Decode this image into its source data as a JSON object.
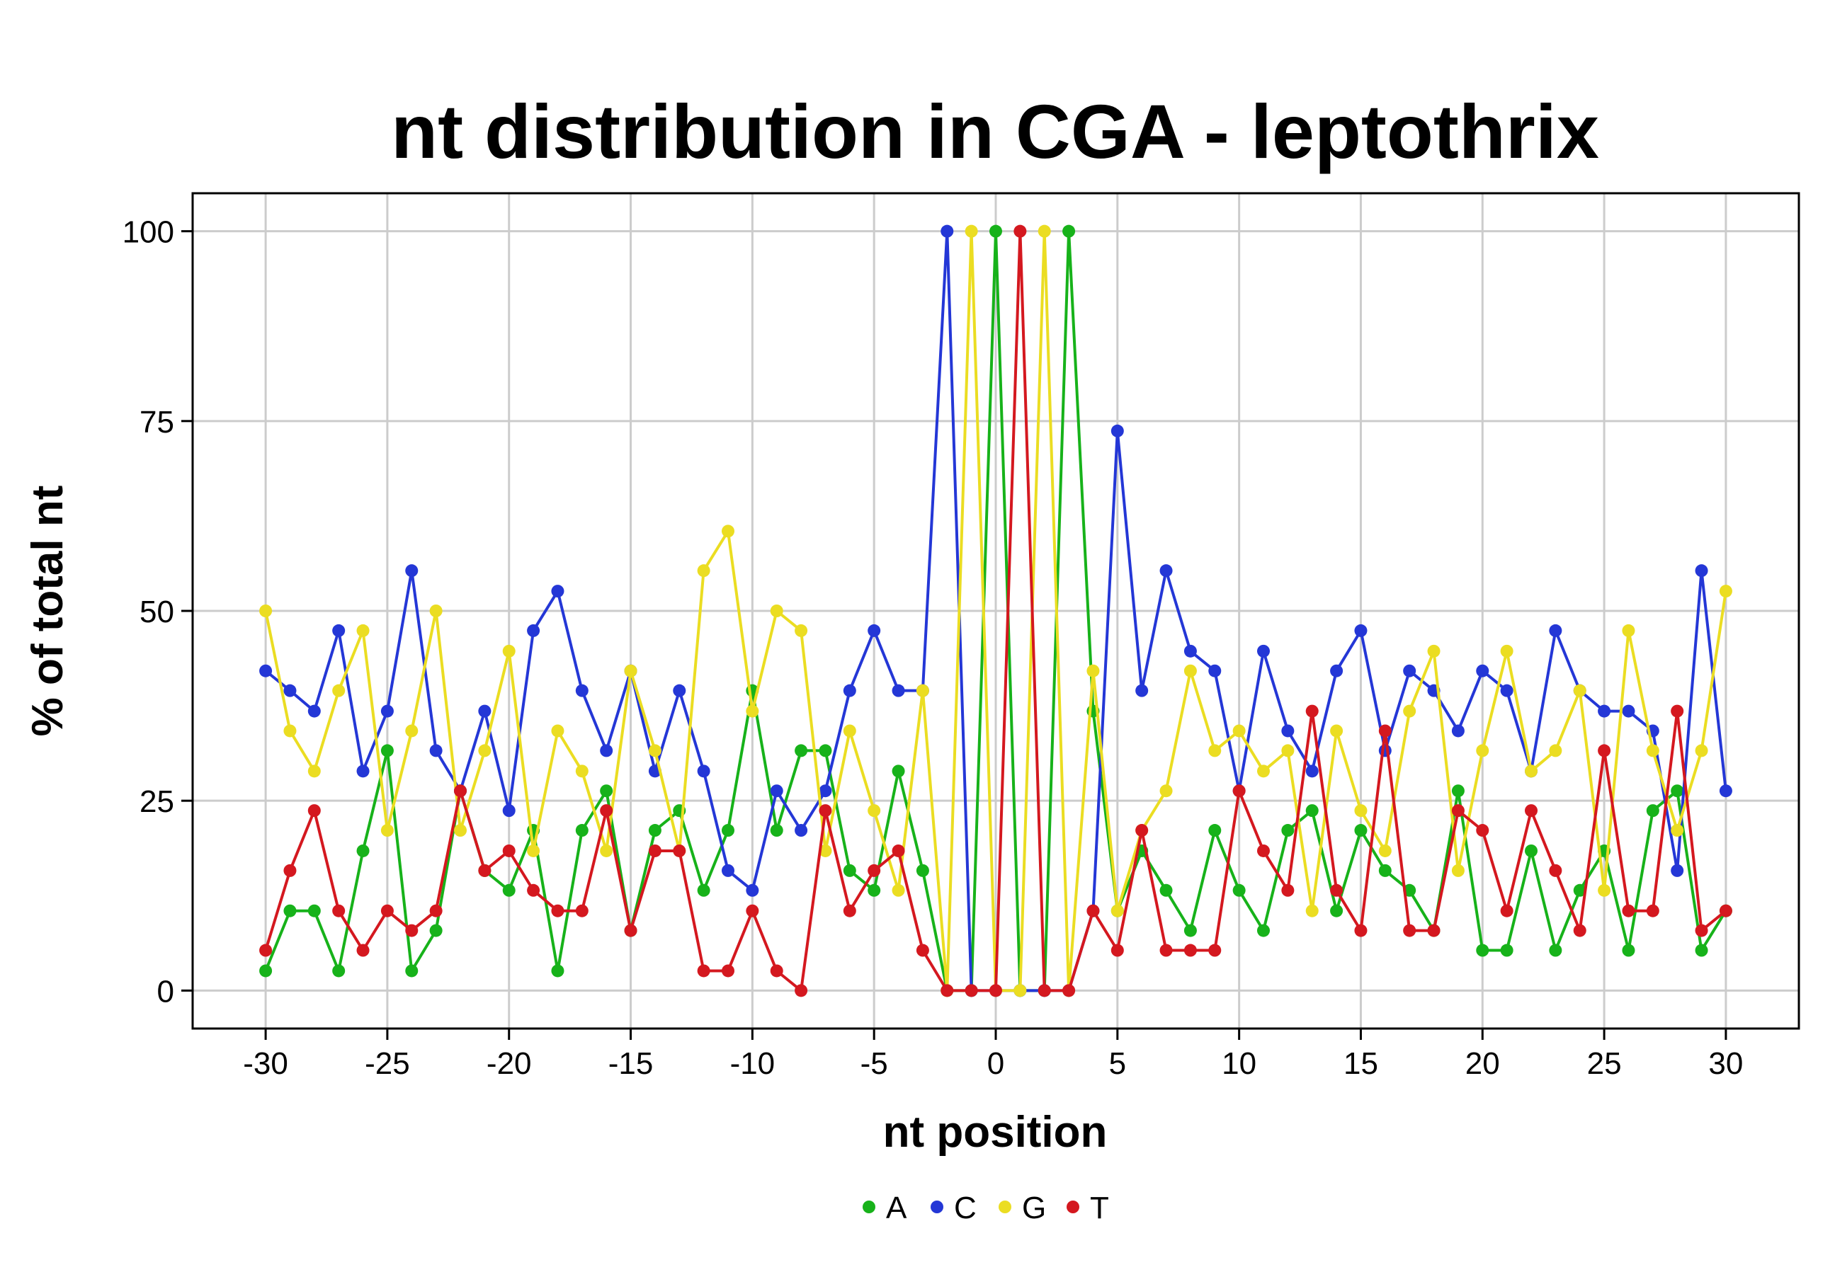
{
  "chart_data": {
    "type": "line",
    "title": "nt distribution in CGA - leptothrix",
    "xlabel": "nt position",
    "ylabel": "% of total nt",
    "xlim": [
      -33,
      33
    ],
    "ylim": [
      -5,
      105
    ],
    "x_ticks": [
      -30,
      -25,
      -20,
      -15,
      -10,
      -5,
      0,
      5,
      10,
      15,
      20,
      25,
      30
    ],
    "y_ticks": [
      0,
      25,
      50,
      75,
      100
    ],
    "grid": true,
    "legend_position": "bottom",
    "x": [
      -30,
      -29,
      -28,
      -27,
      -26,
      -25,
      -24,
      -23,
      -22,
      -21,
      -20,
      -19,
      -18,
      -17,
      -16,
      -15,
      -14,
      -13,
      -12,
      -11,
      -10,
      -9,
      -8,
      -7,
      -6,
      -5,
      -4,
      -3,
      -2,
      -1,
      0,
      1,
      2,
      3,
      4,
      5,
      6,
      7,
      8,
      9,
      10,
      11,
      12,
      13,
      14,
      15,
      16,
      17,
      18,
      19,
      20,
      21,
      22,
      23,
      24,
      25,
      26,
      27,
      28,
      29,
      30
    ],
    "series": [
      {
        "name": "A",
        "color": "#17b21a",
        "values": [
          2.6,
          10.5,
          10.5,
          2.6,
          18.4,
          31.6,
          2.6,
          7.9,
          26.3,
          15.8,
          13.2,
          21.1,
          2.6,
          21.1,
          26.3,
          7.9,
          21.1,
          23.7,
          13.2,
          21.1,
          39.5,
          21.1,
          31.6,
          31.6,
          15.8,
          13.2,
          28.9,
          15.8,
          0,
          0,
          100,
          0,
          0,
          100,
          36.8,
          10.5,
          18.4,
          13.2,
          7.9,
          21.1,
          13.2,
          7.9,
          21.1,
          23.7,
          10.5,
          21.1,
          15.8,
          13.2,
          7.9,
          26.3,
          5.3,
          5.3,
          18.4,
          5.3,
          13.2,
          18.4,
          5.3,
          23.7,
          26.3,
          5.3,
          10.5
        ]
      },
      {
        "name": "C",
        "color": "#2437d6",
        "values": [
          42.1,
          39.5,
          36.8,
          47.4,
          28.9,
          36.8,
          55.3,
          31.6,
          26.3,
          36.8,
          23.7,
          47.4,
          52.6,
          39.5,
          31.6,
          42.1,
          28.9,
          39.5,
          28.9,
          15.8,
          13.2,
          26.3,
          21.1,
          26.3,
          39.5,
          47.4,
          39.5,
          39.5,
          100,
          0,
          0,
          0,
          0,
          0,
          10.5,
          73.7,
          39.5,
          55.3,
          44.7,
          42.1,
          26.3,
          44.7,
          34.2,
          28.9,
          42.1,
          47.4,
          31.6,
          42.1,
          39.5,
          34.2,
          42.1,
          39.5,
          28.9,
          47.4,
          39.5,
          36.8,
          36.8,
          34.2,
          15.8,
          55.3,
          26.3
        ]
      },
      {
        "name": "G",
        "color": "#ebdd22",
        "values": [
          50,
          34.2,
          28.9,
          39.5,
          47.4,
          21.1,
          34.2,
          50,
          21.1,
          31.6,
          44.7,
          18.4,
          34.2,
          28.9,
          18.4,
          42.1,
          31.6,
          18.4,
          55.3,
          60.5,
          36.8,
          50,
          47.4,
          18.4,
          34.2,
          23.7,
          13.2,
          39.5,
          0,
          100,
          0,
          0,
          100,
          0,
          42.1,
          10.5,
          21.1,
          26.3,
          42.1,
          31.6,
          34.2,
          28.9,
          31.6,
          10.5,
          34.2,
          23.7,
          18.4,
          36.8,
          44.7,
          15.8,
          31.6,
          44.7,
          28.9,
          31.6,
          39.5,
          13.2,
          47.4,
          31.6,
          21.1,
          31.6,
          52.6
        ]
      },
      {
        "name": "T",
        "color": "#d4181f",
        "values": [
          5.3,
          15.8,
          23.7,
          10.5,
          5.3,
          10.5,
          7.9,
          10.5,
          26.3,
          15.8,
          18.4,
          13.2,
          10.5,
          10.5,
          23.7,
          7.9,
          18.4,
          18.4,
          2.6,
          2.6,
          10.5,
          2.6,
          0,
          23.7,
          10.5,
          15.8,
          18.4,
          5.3,
          0,
          0,
          0,
          100,
          0,
          0,
          10.5,
          5.3,
          21.1,
          5.3,
          5.3,
          5.3,
          26.3,
          18.4,
          13.2,
          36.8,
          13.2,
          7.9,
          34.2,
          7.9,
          7.9,
          23.7,
          21.1,
          10.5,
          23.7,
          15.8,
          7.9,
          31.6,
          10.5,
          10.5,
          36.8,
          7.9,
          10.5
        ]
      }
    ]
  }
}
